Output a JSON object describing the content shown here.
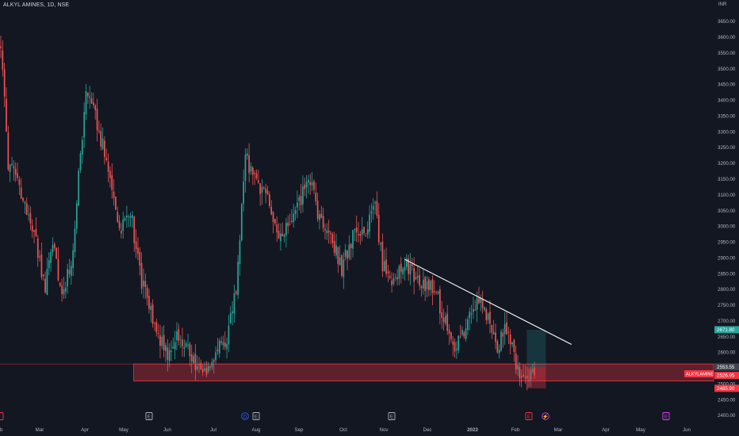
{
  "header": {
    "title": "ALKYL AMINES, 1D, NSE",
    "currency": "INR"
  },
  "colors": {
    "background": "#131722",
    "up": "#26a69a",
    "down": "#ef5350",
    "zone": "#f23645",
    "trendline": "#ffffff",
    "axis_text": "#b2b5be"
  },
  "chart_data": {
    "type": "candlestick",
    "title": "ALKYL AMINES, 1D, NSE",
    "xlabel": "",
    "ylabel": "INR",
    "ylim": [
      2392,
      3710
    ],
    "y_ticks": [
      2400,
      2450,
      2500,
      2550,
      2600,
      2650,
      2700,
      2750,
      2800,
      2850,
      2900,
      2950,
      3000,
      3050,
      3100,
      3150,
      3200,
      3250,
      3300,
      3350,
      3400,
      3450,
      3500,
      3550,
      3600,
      3650
    ],
    "x_ticks": [
      "Mar",
      "Apr",
      "May",
      "Jun",
      "Jul",
      "Aug",
      "Sep",
      "Oct",
      "Nov",
      "Dec",
      "2023",
      "Feb",
      "Mar",
      "Apr",
      "May",
      "Jun"
    ],
    "x_partial_left_label": "b",
    "anchors": [
      [
        0,
        3580
      ],
      [
        4,
        3200
      ],
      [
        10,
        3120
      ],
      [
        18,
        2980
      ],
      [
        24,
        2800
      ],
      [
        28,
        2960
      ],
      [
        33,
        2780
      ],
      [
        38,
        2880
      ],
      [
        46,
        3420
      ],
      [
        52,
        3330
      ],
      [
        58,
        3180
      ],
      [
        64,
        2990
      ],
      [
        70,
        3050
      ],
      [
        76,
        2820
      ],
      [
        82,
        2700
      ],
      [
        90,
        2590
      ],
      [
        96,
        2660
      ],
      [
        102,
        2600
      ],
      [
        108,
        2530
      ],
      [
        116,
        2590
      ],
      [
        122,
        2650
      ],
      [
        127,
        2800
      ],
      [
        132,
        3220
      ],
      [
        138,
        3130
      ],
      [
        144,
        3100
      ],
      [
        150,
        2950
      ],
      [
        158,
        3020
      ],
      [
        166,
        3160
      ],
      [
        172,
        3020
      ],
      [
        178,
        2970
      ],
      [
        184,
        2870
      ],
      [
        190,
        2970
      ],
      [
        196,
        2980
      ],
      [
        202,
        3050
      ],
      [
        206,
        2880
      ],
      [
        212,
        2830
      ],
      [
        218,
        2880
      ],
      [
        226,
        2820
      ],
      [
        234,
        2800
      ],
      [
        240,
        2700
      ],
      [
        246,
        2610
      ],
      [
        252,
        2700
      ],
      [
        258,
        2770
      ],
      [
        264,
        2700
      ],
      [
        268,
        2620
      ],
      [
        272,
        2680
      ],
      [
        276,
        2610
      ],
      [
        280,
        2520
      ],
      [
        285,
        2530
      ],
      [
        288,
        2540
      ]
    ],
    "candles_count": 289,
    "last_candle": {
      "open": 2552,
      "high": 2570,
      "low": 2515,
      "close": 2526.95
    },
    "trendline": {
      "start": {
        "index": 218,
        "value": 2895
      },
      "end": {
        "index": 308,
        "value": 2625
      }
    },
    "demand_zone": {
      "top": 2563,
      "bottom": 2509,
      "from_index": 70
    },
    "position_box": {
      "from_index": 283,
      "to_index": 292,
      "target": 2671.8,
      "entry": 2553.55,
      "stop": 2485.9
    },
    "price_labels": [
      {
        "name": "target",
        "text": "2671.80",
        "value": 2671.8,
        "color": "#26a69a"
      },
      {
        "name": "entry",
        "text": "2553.55",
        "value": 2553.55,
        "color": "#434651"
      },
      {
        "name": "last",
        "text": "2526.95",
        "value": 2526.95,
        "color": "#f23645"
      },
      {
        "name": "stop",
        "text": "2485.90",
        "value": 2485.9,
        "color": "#f23645"
      }
    ],
    "symbol_label": "ALKYLAMINE",
    "events": [
      {
        "glyph": "E",
        "type": "earnings",
        "color": "#b2b5be"
      },
      {
        "glyph": "D",
        "type": "dividend",
        "color": "#2962ff"
      },
      {
        "glyph": "E",
        "type": "earnings",
        "color": "#b2b5be"
      },
      {
        "glyph": "E",
        "type": "earnings",
        "color": "#b2b5be"
      },
      {
        "glyph": "E",
        "type": "earnings",
        "color": "#f23645"
      },
      {
        "glyph": "⚡",
        "type": "split",
        "color": "#e040fb"
      },
      {
        "glyph": "E",
        "type": "earnings",
        "color": "#e040fb"
      }
    ]
  }
}
